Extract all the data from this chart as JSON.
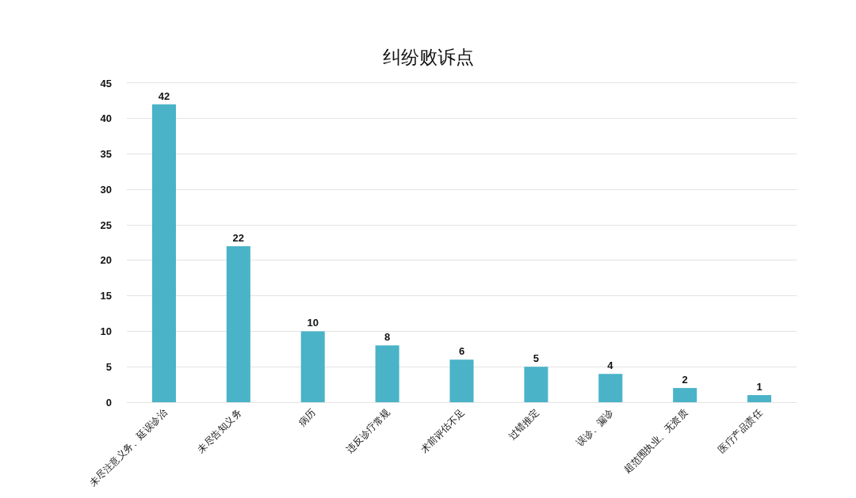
{
  "chart_data": {
    "type": "bar",
    "title": "纠纷败诉点",
    "categories": [
      "未尽注意义务、延误诊治",
      "未尽告知义务",
      "病历",
      "违反诊疗常规",
      "术前评估不足",
      "过错推定",
      "误诊、漏诊",
      "超范围执业、无资质",
      "医疗产品责任"
    ],
    "values": [
      42,
      22,
      10,
      8,
      6,
      5,
      4,
      2,
      1
    ],
    "color": "#4ab3c8",
    "ylim": [
      0,
      45
    ],
    "yticks": [
      0,
      5,
      10,
      15,
      20,
      25,
      30,
      35,
      40,
      45
    ],
    "grid": "y",
    "data_labels": true
  }
}
